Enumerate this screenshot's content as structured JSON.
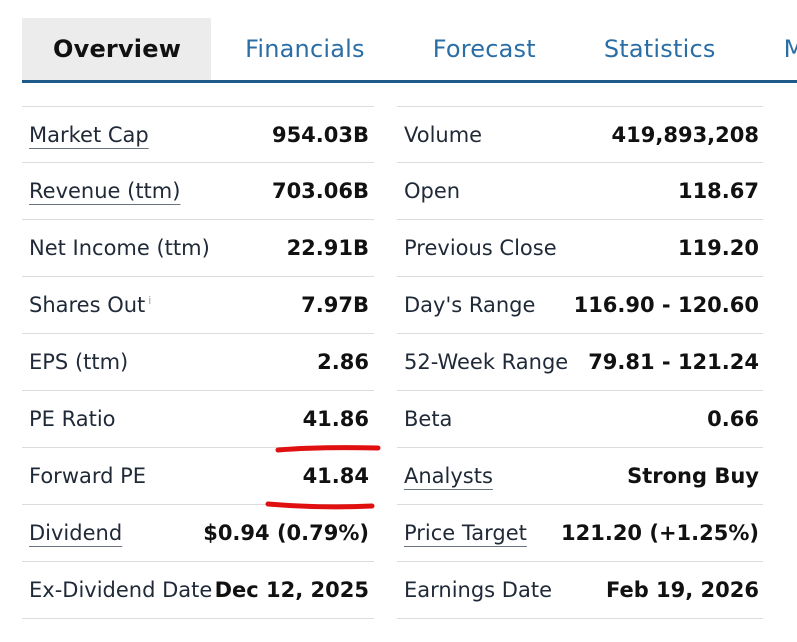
{
  "tabs": [
    {
      "label": "Overview",
      "active": true
    },
    {
      "label": "Financials",
      "active": false
    },
    {
      "label": "Forecast",
      "active": false
    },
    {
      "label": "Statistics",
      "active": false
    },
    {
      "label": "Metrics",
      "active": false
    }
  ],
  "left_table": [
    {
      "label": "Market Cap",
      "value": "954.03B",
      "link": true
    },
    {
      "label": "Revenue (ttm)",
      "value": "703.06B",
      "link": true
    },
    {
      "label": "Net Income (ttm)",
      "value": "22.91B",
      "link": false
    },
    {
      "label": "Shares Out",
      "value": "7.97B",
      "link": false,
      "info": "i"
    },
    {
      "label": "EPS (ttm)",
      "value": "2.86",
      "link": false
    },
    {
      "label": "PE Ratio",
      "value": "41.86",
      "link": false
    },
    {
      "label": "Forward PE",
      "value": "41.84",
      "link": false
    },
    {
      "label": "Dividend",
      "value": "$0.94 (0.79%)",
      "link": true
    },
    {
      "label": "Ex-Dividend Date",
      "value": "Dec 12, 2025",
      "link": false
    }
  ],
  "right_table": [
    {
      "label": "Volume",
      "value": "419,893,208",
      "link": false
    },
    {
      "label": "Open",
      "value": "118.67",
      "link": false
    },
    {
      "label": "Previous Close",
      "value": "119.20",
      "link": false
    },
    {
      "label": "Day's Range",
      "value": "116.90 - 120.60",
      "link": false
    },
    {
      "label": "52-Week Range",
      "value": "79.81 - 121.24",
      "link": false
    },
    {
      "label": "Beta",
      "value": "0.66",
      "link": false
    },
    {
      "label": "Analysts",
      "value": "Strong Buy",
      "link": true
    },
    {
      "label": "Price Target",
      "value": "121.20 (+1.25%)",
      "link": true
    },
    {
      "label": "Earnings Date",
      "value": "Feb 19, 2026",
      "link": false
    }
  ],
  "colors": {
    "tab_link": "#2b6ea6",
    "tab_border": "#1e5a8a",
    "tab_active_bg": "#ececec",
    "annotation": "#e01010"
  }
}
